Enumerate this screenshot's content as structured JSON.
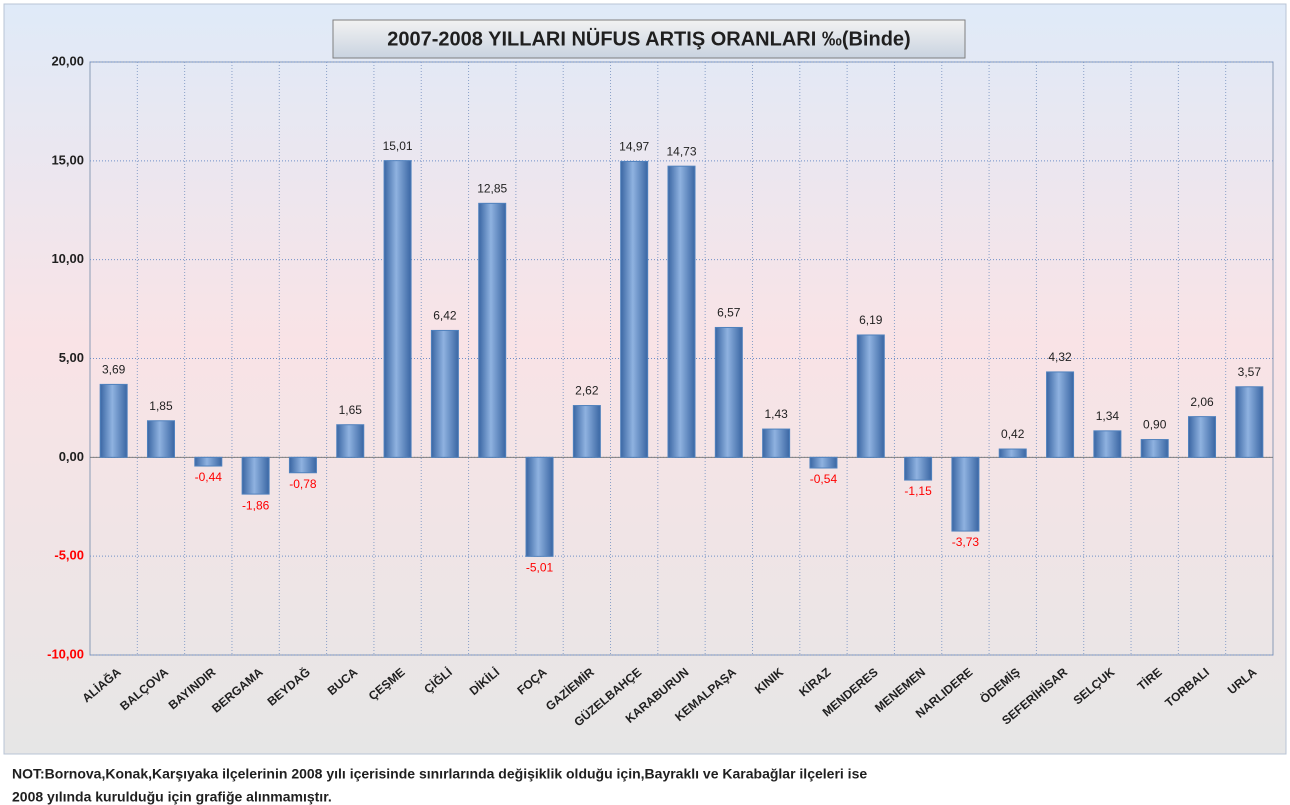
{
  "chart_data": {
    "type": "bar",
    "title": "2007-2008 YILLARI NÜFUS ARTIŞ ORANLARI ‰(Binde)",
    "categories": [
      "ALİAĞA",
      "BALÇOVA",
      "BAYINDIR",
      "BERGAMA",
      "BEYDAĞ",
      "BUCA",
      "ÇEŞME",
      "ÇİĞLİ",
      "DİKİLİ",
      "FOÇA",
      "GAZİEMİR",
      "GÜZELBAHÇE",
      "KARABURUN",
      "KEMALPAŞA",
      "KINIK",
      "KİRAZ",
      "MENDERES",
      "MENEMEN",
      "NARLIDERE",
      "ÖDEMİŞ",
      "SEFERİHİSAR",
      "SELÇUK",
      "TİRE",
      "TORBALI",
      "URLA"
    ],
    "values": [
      3.69,
      1.85,
      -0.44,
      -1.86,
      -0.78,
      1.65,
      15.01,
      6.42,
      12.85,
      -5.01,
      2.62,
      14.97,
      14.73,
      6.57,
      1.43,
      -0.54,
      6.19,
      -1.15,
      -3.73,
      0.42,
      4.32,
      1.34,
      0.9,
      2.06,
      3.57
    ],
    "value_labels": [
      "3,69",
      "1,85",
      "-0,44",
      "-1,86",
      "-0,78",
      "1,65",
      "15,01",
      "6,42",
      "12,85",
      "-5,01",
      "2,62",
      "14,97",
      "14,73",
      "6,57",
      "1,43",
      "-0,54",
      "6,19",
      "-1,15",
      "-3,73",
      "0,42",
      "4,32",
      "1,34",
      "0,90",
      "2,06",
      "3,57"
    ],
    "color": "#4f81bd",
    "negative_label_color": "#ff0000",
    "ylim": [
      -10,
      20
    ],
    "yticks": [
      {
        "value": -10,
        "label": "-10,00"
      },
      {
        "value": -5,
        "label": "-5,00"
      },
      {
        "value": 0,
        "label": "0,00"
      },
      {
        "value": 5,
        "label": "5,00"
      },
      {
        "value": 10,
        "label": "10,00"
      },
      {
        "value": 15,
        "label": "15,00"
      },
      {
        "value": 20,
        "label": "20,00"
      }
    ],
    "grid": true,
    "note": [
      "NOT:Bornova,Konak,Karşıyaka ilçelerinin 2008 yılı içerisinde sınırlarında değişiklik olduğu için,Bayraklı ve Karabağlar ilçeleri ise",
      "2008 yılında kurulduğu için grafiğe alınmamıştır."
    ]
  }
}
